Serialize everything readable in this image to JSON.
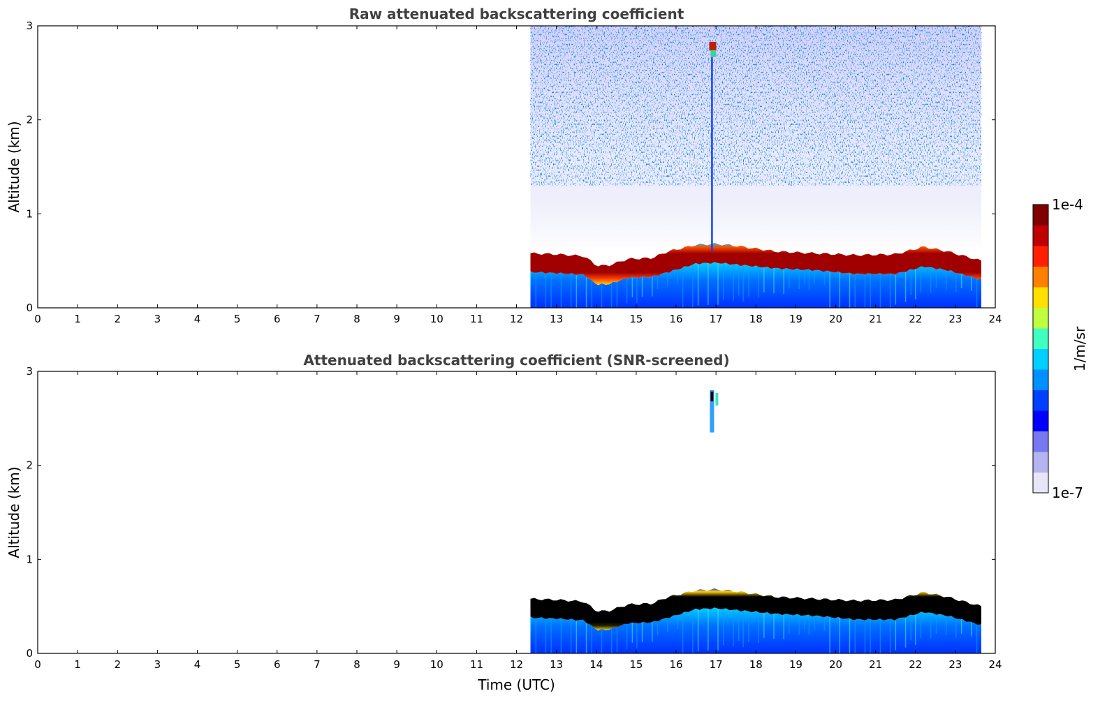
{
  "chart_data": [
    {
      "type": "heatmap",
      "title": "Raw attenuated backscattering coefficient",
      "xlabel": "",
      "ylabel": "Altitude (km)",
      "xlim": [
        0,
        24
      ],
      "ylim": [
        0,
        3
      ],
      "x_ticks": [
        "0",
        "1",
        "2",
        "3",
        "4",
        "5",
        "6",
        "7",
        "8",
        "9",
        "10",
        "11",
        "12",
        "13",
        "14",
        "15",
        "16",
        "17",
        "18",
        "19",
        "20",
        "21",
        "22",
        "23",
        "24"
      ],
      "y_ticks": [
        "0",
        "1",
        "2",
        "3"
      ],
      "data_start_time": 12.35,
      "data_end_time": 23.65,
      "layer_profile": {
        "time": [
          12.35,
          13.0,
          13.7,
          14.0,
          14.3,
          14.8,
          15.4,
          15.8,
          16.5,
          17.0,
          17.5,
          18.5,
          19.5,
          20.5,
          21.5,
          22.2,
          22.8,
          23.65
        ],
        "top_km": [
          0.58,
          0.57,
          0.55,
          0.45,
          0.45,
          0.52,
          0.53,
          0.6,
          0.67,
          0.68,
          0.66,
          0.6,
          0.58,
          0.56,
          0.57,
          0.65,
          0.6,
          0.5
        ],
        "bottom_km": [
          0.38,
          0.37,
          0.35,
          0.25,
          0.25,
          0.32,
          0.33,
          0.38,
          0.47,
          0.48,
          0.46,
          0.42,
          0.4,
          0.36,
          0.36,
          0.44,
          0.4,
          0.3
        ]
      },
      "plume": {
        "time": 16.9,
        "top_km": 2.8
      },
      "noise_above_layer": true
    },
    {
      "type": "heatmap",
      "title": "Attenuated backscattering coefficient (SNR-screened)",
      "xlabel": "Time (UTC)",
      "ylabel": "Altitude (km)",
      "xlim": [
        0,
        24
      ],
      "ylim": [
        0,
        3
      ],
      "x_ticks": [
        "0",
        "1",
        "2",
        "3",
        "4",
        "5",
        "6",
        "7",
        "8",
        "9",
        "10",
        "11",
        "12",
        "13",
        "14",
        "15",
        "16",
        "17",
        "18",
        "19",
        "20",
        "21",
        "22",
        "23",
        "24"
      ],
      "y_ticks": [
        "0",
        "1",
        "2",
        "3"
      ],
      "data_start_time": 12.35,
      "data_end_time": 23.65,
      "layer_profile": {
        "time": [
          12.35,
          13.0,
          13.7,
          14.0,
          14.3,
          14.8,
          15.4,
          15.8,
          16.5,
          17.0,
          17.5,
          18.5,
          19.5,
          20.5,
          21.5,
          22.2,
          22.8,
          23.65
        ],
        "top_km": [
          0.58,
          0.57,
          0.55,
          0.45,
          0.45,
          0.52,
          0.53,
          0.6,
          0.67,
          0.68,
          0.66,
          0.6,
          0.58,
          0.56,
          0.57,
          0.65,
          0.6,
          0.5
        ],
        "bottom_km": [
          0.38,
          0.37,
          0.35,
          0.25,
          0.25,
          0.32,
          0.33,
          0.38,
          0.47,
          0.48,
          0.46,
          0.42,
          0.4,
          0.36,
          0.36,
          0.44,
          0.4,
          0.3
        ]
      },
      "plume": {
        "time": 16.9,
        "top_km": 2.8,
        "bottom_km": 2.35
      },
      "noise_above_layer": false,
      "saturated_color": "#000000"
    }
  ],
  "colorbar": {
    "label": "1/m/sr",
    "max_label": "1e-4",
    "min_label": "1e-7",
    "colors": [
      "#e6e6f8",
      "#b4b4f0",
      "#7878f0",
      "#0000ff",
      "#0040ff",
      "#0090ff",
      "#00d0ff",
      "#40ffc0",
      "#c0ff40",
      "#ffe000",
      "#ff8000",
      "#ff2000",
      "#c00000",
      "#800000"
    ]
  }
}
